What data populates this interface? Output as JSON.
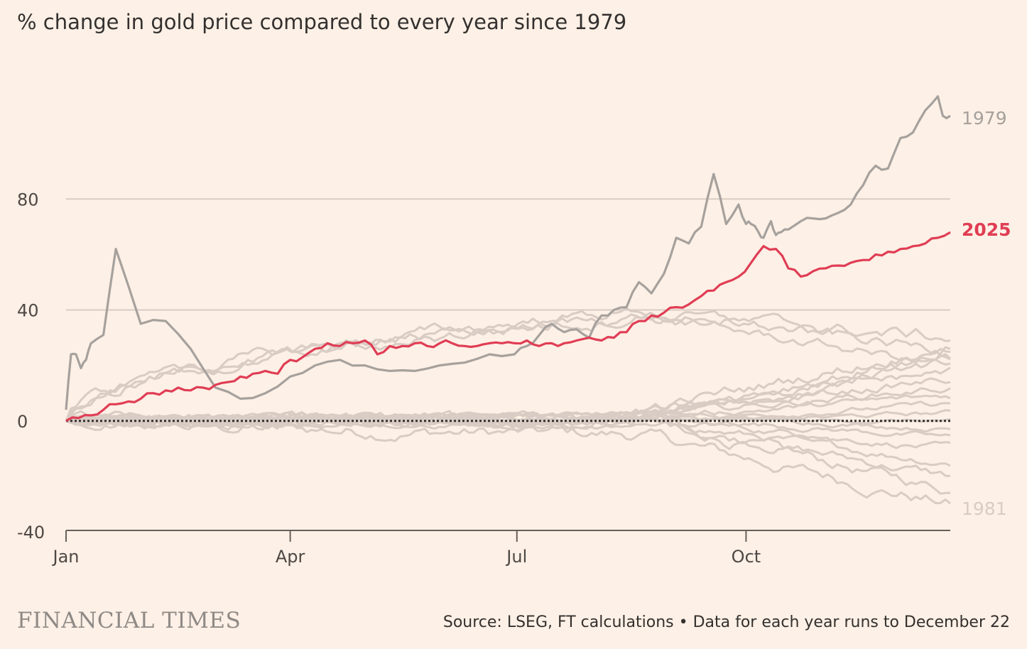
{
  "chart_data": {
    "type": "line",
    "title": "% change in gold price compared to every year since 1979",
    "xlabel": "",
    "ylabel": "",
    "x_ticks": [
      "Jan",
      "Apr",
      "Jul",
      "Oct"
    ],
    "x_tick_days": [
      0,
      90,
      181,
      273
    ],
    "x_range_days": [
      0,
      355
    ],
    "y_ticks": [
      80,
      40,
      0,
      -40
    ],
    "y_tick_labels": [
      "80",
      "40",
      "0",
      "-40"
    ],
    "ylim": [
      -40,
      120
    ],
    "reference_line": 0,
    "highlighted_series": [
      {
        "name": "1979",
        "color": "#a6a19d",
        "x": [
          0,
          2,
          4,
          6,
          8,
          10,
          15,
          20,
          30,
          40,
          50,
          60,
          70,
          80,
          90,
          100,
          110,
          120,
          130,
          140,
          150,
          160,
          170,
          180,
          185,
          190,
          195,
          200,
          205,
          210,
          215,
          220,
          225,
          230,
          235,
          240,
          245,
          250,
          255,
          260,
          265,
          270,
          273,
          275,
          278,
          280,
          283,
          285,
          287,
          290,
          295,
          300,
          305,
          310,
          315,
          320,
          325,
          330,
          335,
          340,
          345,
          350,
          352,
          355
        ],
        "values": [
          4,
          24,
          24,
          19,
          22,
          28,
          31,
          62,
          35,
          36,
          26,
          12,
          8,
          10,
          16,
          20,
          22,
          20,
          18,
          18,
          20,
          21,
          24,
          24,
          27,
          31,
          35,
          32,
          33,
          30,
          38,
          40,
          41,
          50,
          46,
          53,
          66,
          64,
          70,
          89,
          71,
          78,
          71,
          71,
          68,
          66,
          72,
          67,
          68,
          69,
          72,
          73,
          73,
          75,
          78,
          85,
          92,
          91,
          102,
          104,
          112,
          117,
          110,
          110
        ]
      },
      {
        "name": "2025",
        "color": "#e03d54",
        "x": [
          0,
          5,
          10,
          15,
          20,
          25,
          30,
          35,
          40,
          45,
          50,
          55,
          60,
          65,
          70,
          75,
          80,
          85,
          90,
          95,
          100,
          105,
          110,
          115,
          120,
          125,
          130,
          135,
          140,
          145,
          150,
          155,
          160,
          165,
          170,
          175,
          180,
          185,
          190,
          195,
          200,
          205,
          210,
          215,
          220,
          225,
          230,
          235,
          240,
          245,
          250,
          255,
          260,
          265,
          270,
          275,
          280,
          285,
          290,
          295,
          300,
          305,
          310,
          315,
          320,
          325,
          330,
          335,
          340,
          345,
          350,
          355
        ],
        "values": [
          0,
          1,
          2,
          4,
          6,
          7,
          8,
          10,
          11,
          12,
          11,
          12,
          13,
          14,
          16,
          17,
          18,
          17,
          22,
          23,
          26,
          28,
          27,
          28,
          29,
          24,
          27,
          27,
          28,
          27,
          28,
          28,
          27,
          27,
          28,
          28,
          28,
          29,
          27,
          28,
          28,
          29,
          30,
          29,
          30,
          32,
          36,
          38,
          39,
          41,
          42,
          45,
          47,
          50,
          52,
          57,
          63,
          62,
          55,
          52,
          54,
          55,
          56,
          57,
          58,
          60,
          61,
          62,
          63,
          64,
          66,
          68
        ]
      }
    ],
    "series_end_labels": [
      "1979",
      "2025",
      "1981"
    ],
    "background_series": [
      {
        "name": "1981",
        "color": "#d9ccc4",
        "end": -30,
        "peak": -5,
        "trough": -32
      },
      {
        "name": "other years",
        "color": "#d9ccc4",
        "end": -25,
        "peak": 0,
        "trough": -25
      },
      {
        "name": "other years",
        "color": "#d9ccc4",
        "end": -20,
        "peak": 0,
        "trough": -20
      },
      {
        "name": "other years",
        "color": "#d9ccc4",
        "end": -15,
        "peak": 0,
        "trough": -17
      },
      {
        "name": "other years",
        "color": "#d9ccc4",
        "end": -10,
        "peak": 1,
        "trough": -12
      },
      {
        "name": "other years",
        "color": "#d9ccc4",
        "end": -6,
        "peak": 2,
        "trough": -8
      },
      {
        "name": "other years",
        "color": "#d9ccc4",
        "end": -3,
        "peak": 3,
        "trough": -5
      },
      {
        "name": "other years",
        "color": "#d9ccc4",
        "end": 0,
        "peak": 4,
        "trough": -3
      },
      {
        "name": "other years",
        "color": "#d9ccc4",
        "end": 3,
        "peak": 6,
        "trough": -2
      },
      {
        "name": "other years",
        "color": "#d9ccc4",
        "end": 6,
        "peak": 8,
        "trough": -1
      },
      {
        "name": "other years",
        "color": "#d9ccc4",
        "end": 9,
        "peak": 10,
        "trough": 0
      },
      {
        "name": "other years",
        "color": "#d9ccc4",
        "end": 12,
        "peak": 13,
        "trough": 0
      },
      {
        "name": "other years",
        "color": "#d9ccc4",
        "end": 15,
        "peak": 16,
        "trough": 0
      },
      {
        "name": "other years",
        "color": "#d9ccc4",
        "end": 18,
        "peak": 19,
        "trough": 0
      },
      {
        "name": "other years",
        "color": "#d9ccc4",
        "end": 21,
        "peak": 22,
        "trough": 0
      },
      {
        "name": "other years",
        "color": "#d9ccc4",
        "end": 24,
        "peak": 25,
        "trough": 0
      },
      {
        "name": "other years",
        "color": "#d9ccc4",
        "end": 27,
        "peak": 28,
        "trough": 0
      },
      {
        "name": "other years",
        "color": "#d9ccc4",
        "end": 30,
        "peak": 38,
        "trough": 0
      },
      {
        "name": "other years",
        "color": "#d9ccc4",
        "end": 25,
        "peak": 40,
        "trough": 0
      },
      {
        "name": "other years",
        "color": "#d9ccc4",
        "end": 20,
        "peak": 38,
        "trough": 0
      }
    ],
    "colors": {
      "background": "#fdf0e6",
      "gridline": "#d9ccc4",
      "axis": "#66605c",
      "zero_line": "#33302e",
      "highlight_2025": "#e03d54",
      "highlight_1979": "#a6a19d",
      "other_years": "#d9ccc4"
    }
  },
  "footer": {
    "brand": "FINANCIAL TIMES",
    "source": "Source: LSEG, FT calculations • Data for each year runs to December 22"
  }
}
